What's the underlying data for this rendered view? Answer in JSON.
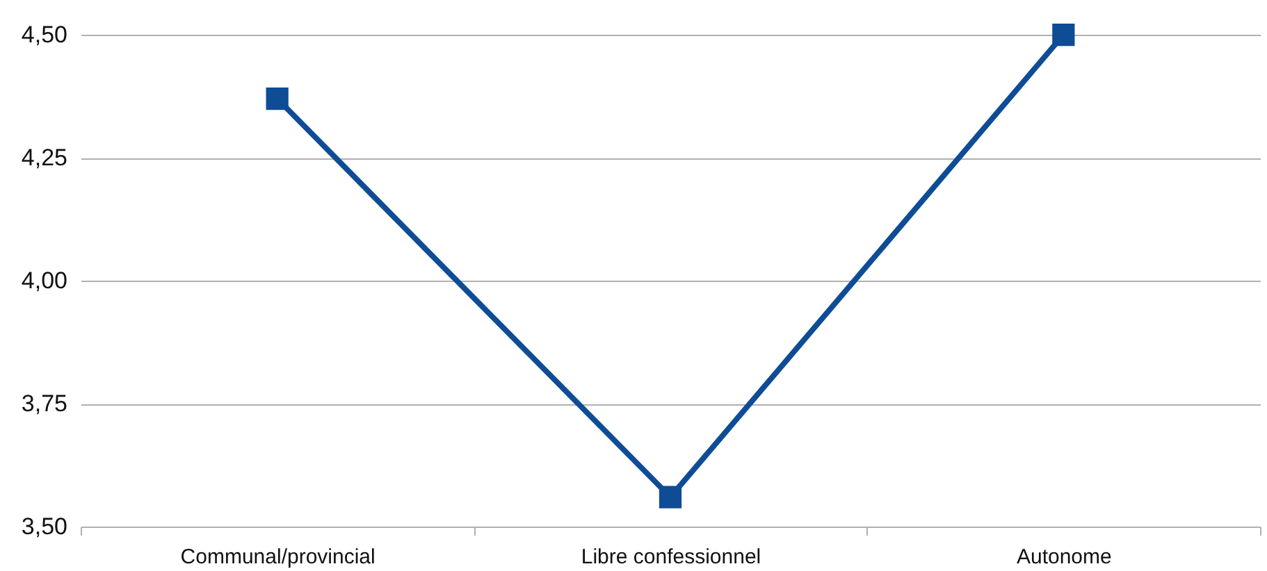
{
  "chart_data": {
    "type": "line",
    "categories": [
      "Communal/provincial",
      "Libre confessionnel",
      "Autonome"
    ],
    "series": [
      {
        "color": "#0e4c96",
        "values": [
          4.37,
          3.56,
          4.5
        ]
      }
    ],
    "ylim": [
      3.5,
      4.5
    ],
    "yticks": [
      {
        "value": 3.5,
        "label": "3,50"
      },
      {
        "value": 3.75,
        "label": "3,75"
      },
      {
        "value": 4.0,
        "label": "4,00"
      },
      {
        "value": 4.25,
        "label": "4,25"
      },
      {
        "value": 4.5,
        "label": "4,50"
      }
    ],
    "grid": "y",
    "marker": "square",
    "legend": false
  }
}
